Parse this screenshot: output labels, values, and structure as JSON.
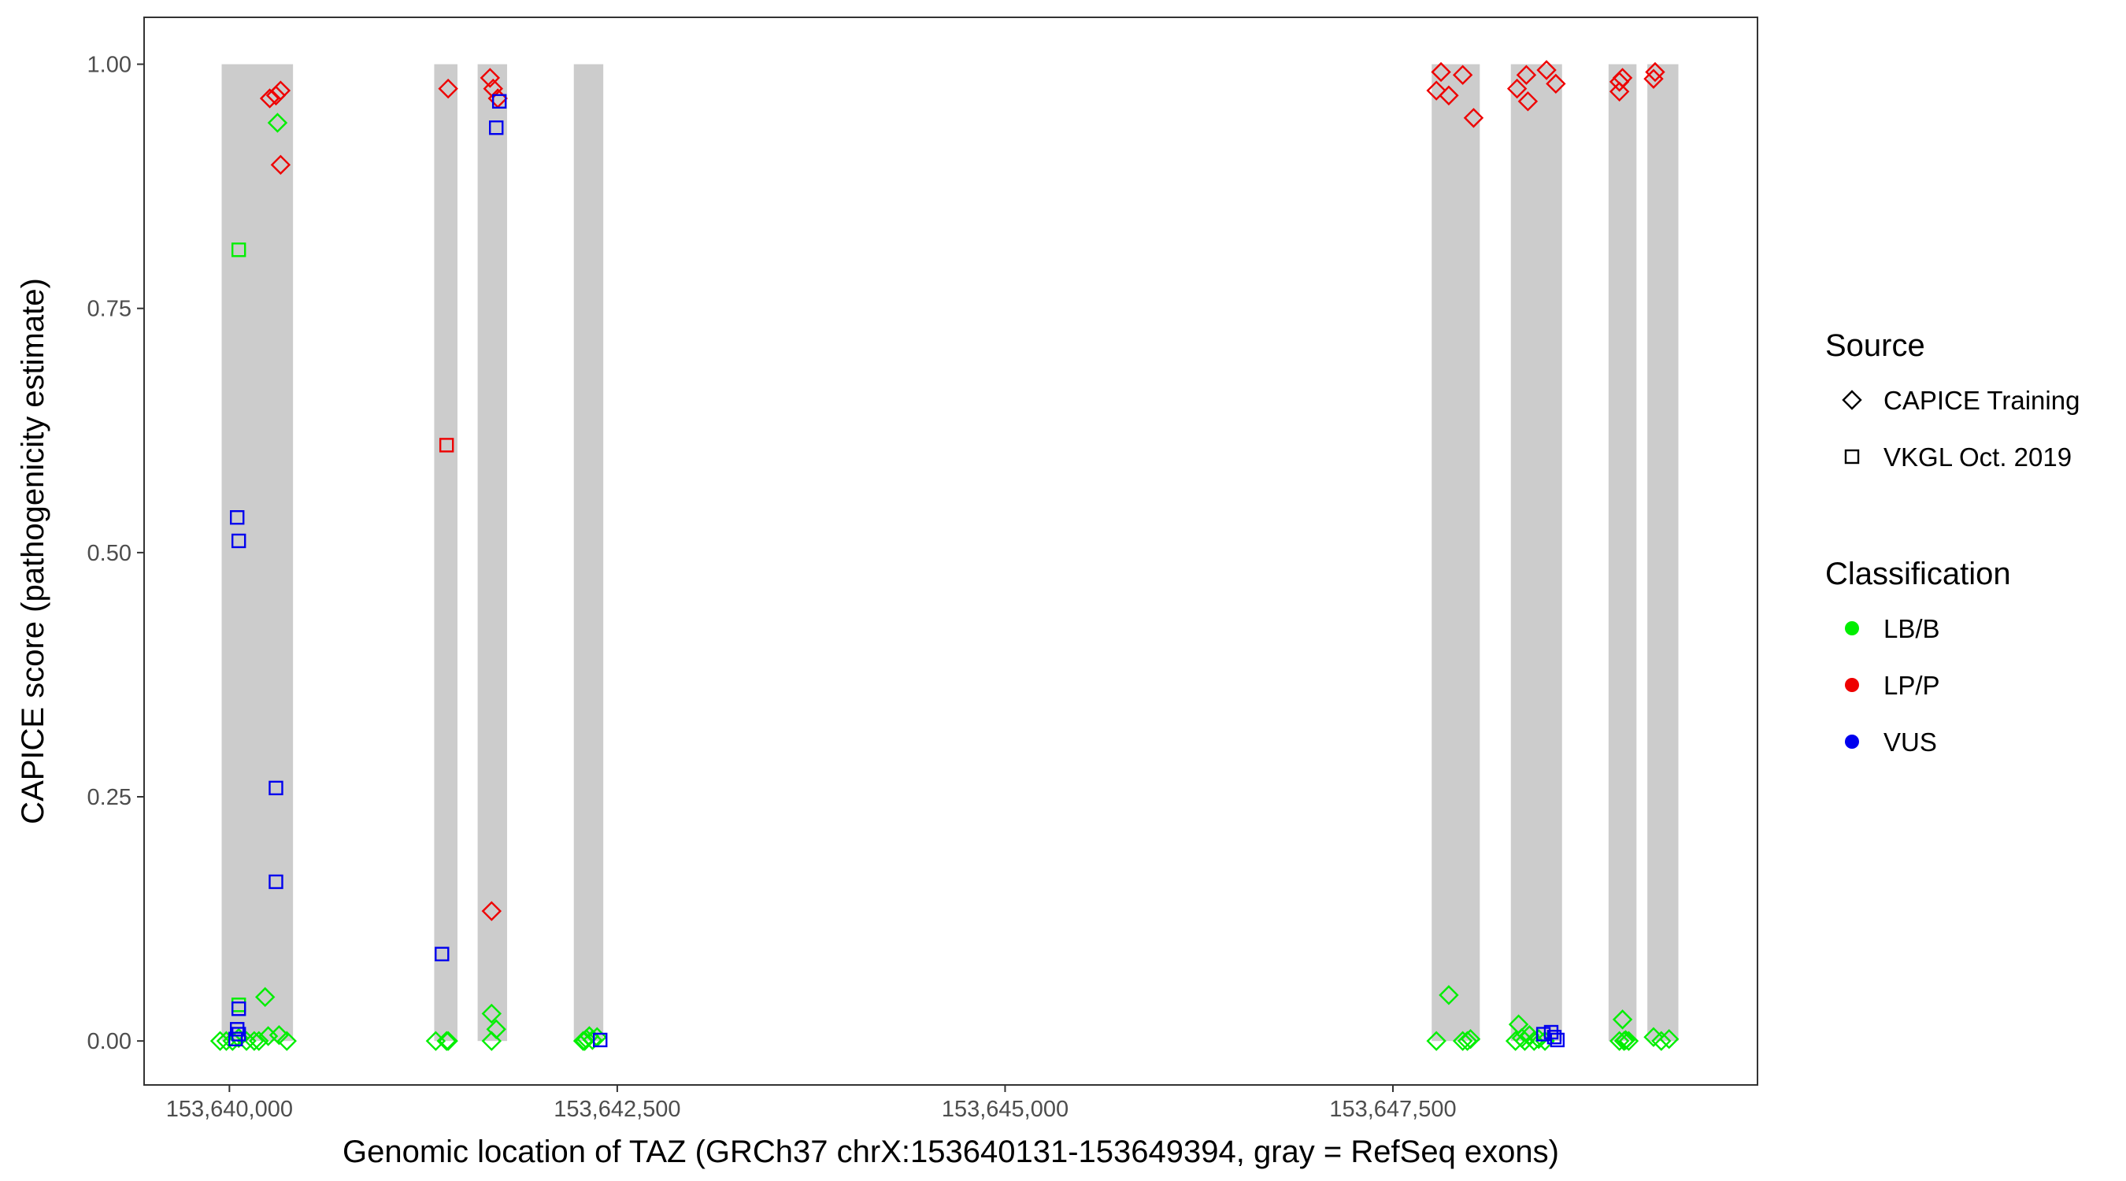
{
  "chart_data": {
    "type": "scatter",
    "xlabel": "Genomic location of TAZ (GRCh37 chrX:153640131-153649394, gray = RefSeq exons)",
    "ylabel": "CAPICE score (pathogenicity estimate)",
    "xlim": [
      153639450,
      153649850
    ],
    "ylim": [
      -0.045,
      1.048
    ],
    "x_ticks": [
      153640000,
      153642500,
      153645000,
      153647500
    ],
    "x_tick_labels": [
      "153,640,000",
      "153,642,500",
      "153,645,000",
      "153,647,500"
    ],
    "y_ticks": [
      0,
      0.25,
      0.5,
      0.75,
      1.0
    ],
    "y_tick_labels": [
      "0.00",
      "0.25",
      "0.50",
      "0.75",
      "1.00"
    ],
    "grid": false,
    "exon_color": "#cccccc",
    "exons": [
      [
        153639950,
        153640410
      ],
      [
        153641320,
        153641470
      ],
      [
        153641600,
        153641790
      ],
      [
        153642220,
        153642410
      ],
      [
        153647750,
        153648060
      ],
      [
        153648260,
        153648590
      ],
      [
        153648890,
        153649070
      ],
      [
        153649140,
        153649340
      ]
    ],
    "legend": {
      "position": "right",
      "source": {
        "title": "Source",
        "items": [
          {
            "label": "CAPICE Training",
            "shape": "diamond"
          },
          {
            "label": "VKGL Oct. 2019",
            "shape": "square"
          }
        ]
      },
      "classification": {
        "title": "Classification",
        "items": [
          {
            "label": "LB/B",
            "color": "#00ee00"
          },
          {
            "label": "LP/P",
            "color": "#ee0000"
          },
          {
            "label": "VUS",
            "color": "#0000ee"
          }
        ]
      }
    },
    "series": [
      {
        "source": "CAPICE Training",
        "classification": "LB/B",
        "points": [
          [
            153639940,
            0
          ],
          [
            153639980,
            0
          ],
          [
            153640020,
            0
          ],
          [
            153640060,
            0.003
          ],
          [
            153640110,
            0
          ],
          [
            153640160,
            0
          ],
          [
            153640190,
            0
          ],
          [
            153640230,
            0.045
          ],
          [
            153640250,
            0.005
          ],
          [
            153640310,
            0.94
          ],
          [
            153640320,
            0.006
          ],
          [
            153640370,
            0
          ],
          [
            153641330,
            0
          ],
          [
            153641400,
            0
          ],
          [
            153641410,
            0
          ],
          [
            153641690,
            0.028
          ],
          [
            153641690,
            0
          ],
          [
            153641720,
            0.012
          ],
          [
            153642280,
            0
          ],
          [
            153642290,
            0
          ],
          [
            153642300,
            0.002
          ],
          [
            153642320,
            0.005
          ],
          [
            153642340,
            0.001
          ],
          [
            153642370,
            0.004
          ],
          [
            153647780,
            0
          ],
          [
            153647860,
            0.047
          ],
          [
            153647950,
            0
          ],
          [
            153647980,
            0
          ],
          [
            153648000,
            0.002
          ],
          [
            153648290,
            0
          ],
          [
            153648310,
            0.017
          ],
          [
            153648330,
            0.003
          ],
          [
            153648350,
            0
          ],
          [
            153648380,
            0.006
          ],
          [
            153648410,
            0
          ],
          [
            153648440,
            0.002
          ],
          [
            153648480,
            0
          ],
          [
            153648960,
            0
          ],
          [
            153648980,
            0.022
          ],
          [
            153648990,
            0
          ],
          [
            153649000,
            0.001
          ],
          [
            153649020,
            0
          ],
          [
            153649180,
            0.004
          ],
          [
            153649230,
            0
          ],
          [
            153649280,
            0.002
          ]
        ]
      },
      {
        "source": "CAPICE Training",
        "classification": "LP/P",
        "points": [
          [
            153640260,
            0.965
          ],
          [
            153640300,
            0.968
          ],
          [
            153640330,
            0.973
          ],
          [
            153640330,
            0.897
          ],
          [
            153641410,
            0.975
          ],
          [
            153641680,
            0.986
          ],
          [
            153641700,
            0.975
          ],
          [
            153641730,
            0.965
          ],
          [
            153641690,
            0.133
          ],
          [
            153647780,
            0.973
          ],
          [
            153647810,
            0.992
          ],
          [
            153647860,
            0.968
          ],
          [
            153647950,
            0.989
          ],
          [
            153648020,
            0.945
          ],
          [
            153648300,
            0.975
          ],
          [
            153648360,
            0.989
          ],
          [
            153648370,
            0.962
          ],
          [
            153648490,
            0.994
          ],
          [
            153648550,
            0.98
          ],
          [
            153648960,
            0.982
          ],
          [
            153648980,
            0.986
          ],
          [
            153648960,
            0.972
          ],
          [
            153649180,
            0.985
          ],
          [
            153649190,
            0.992
          ]
        ]
      },
      {
        "source": "VKGL Oct. 2019",
        "classification": "LB/B",
        "points": [
          [
            153640060,
            0.81
          ],
          [
            153640060,
            0.037
          ]
        ]
      },
      {
        "source": "VKGL Oct. 2019",
        "classification": "LP/P",
        "points": [
          [
            153641400,
            0.61
          ]
        ]
      },
      {
        "source": "VKGL Oct. 2019",
        "classification": "VUS",
        "points": [
          [
            153640050,
            0.536
          ],
          [
            153640060,
            0.512
          ],
          [
            153640300,
            0.259
          ],
          [
            153640300,
            0.163
          ],
          [
            153640060,
            0.033
          ],
          [
            153640050,
            0.012
          ],
          [
            153640060,
            0.007
          ],
          [
            153640040,
            0.002
          ],
          [
            153641370,
            0.089
          ],
          [
            153641720,
            0.935
          ],
          [
            153641740,
            0.962
          ],
          [
            153642390,
            0.001
          ],
          [
            153648470,
            0.007
          ],
          [
            153648520,
            0.009
          ],
          [
            153648540,
            0.004
          ],
          [
            153648560,
            0.001
          ]
        ]
      }
    ]
  }
}
